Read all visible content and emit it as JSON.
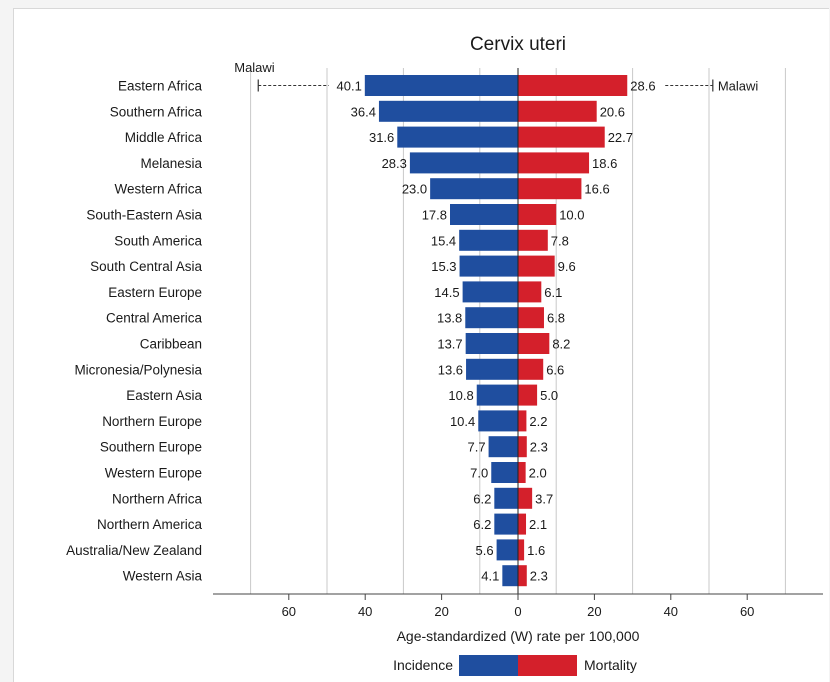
{
  "chart_data": {
    "type": "bar",
    "title": "Cervix uteri",
    "xlabel": "Age-standardized (W) rate per 100,000",
    "x_tick_labels": [
      "60",
      "40",
      "20",
      "0",
      "20",
      "40",
      "60"
    ],
    "xlim": [
      -80,
      80
    ],
    "grid": true,
    "legend_position": "bottom",
    "categories": [
      "Eastern Africa",
      "Southern Africa",
      "Middle Africa",
      "Melanesia",
      "Western Africa",
      "South-Eastern Asia",
      "South America",
      "South Central Asia",
      "Eastern Europe",
      "Central America",
      "Caribbean",
      "Micronesia/Polynesia",
      "Eastern Asia",
      "Northern Europe",
      "Southern Europe",
      "Western Europe",
      "Northern Africa",
      "Northern America",
      "Australia/New Zealand",
      "Western Asia"
    ],
    "series": [
      {
        "name": "Incidence",
        "color": "#1f4e9f",
        "side": "left",
        "values": [
          40.1,
          36.4,
          31.6,
          28.3,
          23.0,
          17.8,
          15.4,
          15.3,
          14.5,
          13.8,
          13.7,
          13.6,
          10.8,
          10.4,
          7.7,
          7.0,
          6.2,
          6.2,
          5.6,
          4.1
        ],
        "labels": [
          "40.1",
          "36.4",
          "31.6",
          "28.3",
          "23.0",
          "17.8",
          "15.4",
          "15.3",
          "14.5",
          "13.8",
          "13.7",
          "13.6",
          "10.8",
          "10.4",
          "7.7",
          "7.0",
          "6.2",
          "6.2",
          "5.6",
          "4.1"
        ]
      },
      {
        "name": "Mortality",
        "color": "#d4202b",
        "side": "right",
        "values": [
          28.6,
          20.6,
          22.7,
          18.6,
          16.6,
          10.0,
          7.8,
          9.6,
          6.1,
          6.8,
          8.2,
          6.6,
          5.0,
          2.2,
          2.3,
          2.0,
          3.7,
          2.1,
          1.6,
          2.3
        ],
        "labels": [
          "28.6",
          "20.6",
          "22.7",
          "18.6",
          "16.6",
          "10.0",
          "7.8",
          "9.6",
          "6.1",
          "6.8",
          "8.2",
          "6.6",
          "5.0",
          "2.2",
          "2.3",
          "2.0",
          "3.7",
          "2.1",
          "1.6",
          "2.3"
        ]
      }
    ],
    "annotations": [
      {
        "text": "Malawi",
        "series": "Incidence",
        "category": "Eastern Africa",
        "value": 68.0
      },
      {
        "text": "Malawi",
        "series": "Mortality",
        "category": "Eastern Africa",
        "value": 51.0
      }
    ]
  }
}
